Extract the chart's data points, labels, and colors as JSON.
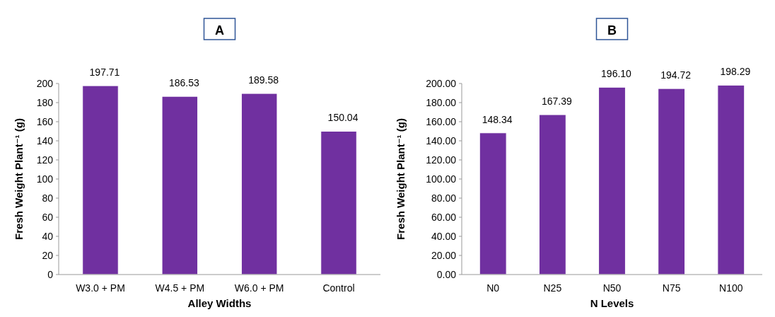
{
  "chart_data": [
    {
      "type": "bar",
      "title": "A",
      "xlabel": "Alley Widths",
      "ylabel": "Fresh Weight Plant⁻¹ (g)",
      "categories": [
        "W3.0  + PM",
        "W4.5  + PM",
        "W6.0  + PM",
        "Control"
      ],
      "values": [
        197.71,
        186.53,
        189.58,
        150.04
      ],
      "color": "#7030a0",
      "data_labels": true,
      "ylim": [
        0,
        200
      ],
      "yticks": [
        0,
        20,
        40,
        60,
        80,
        100,
        120,
        140,
        160,
        180,
        200
      ],
      "grid": false
    },
    {
      "type": "bar",
      "title": "B",
      "xlabel": "N Levels",
      "ylabel": "Fresh Weight Plant⁻¹ (g)",
      "categories": [
        "N0",
        "N25",
        "N50",
        "N75",
        "N100"
      ],
      "values": [
        148.34,
        167.39,
        196.1,
        194.72,
        198.29
      ],
      "value_labels": [
        "148.34",
        "167.39",
        "196.10",
        "194.72",
        "198.29"
      ],
      "color": "#7030a0",
      "ylim": [
        0,
        200
      ],
      "yticks": [
        {
          "value": 0,
          "label": "0.00"
        },
        {
          "value": 20,
          "label": "20.00"
        },
        {
          "value": 40,
          "label": "40.00"
        },
        {
          "value": 60,
          "label": "60.00"
        },
        {
          "value": 80,
          "label": "80.00"
        },
        {
          "value": 100,
          "label": "100.00"
        },
        {
          "value": 120,
          "label": "120.00"
        },
        {
          "value": 140,
          "label": "140.00"
        },
        {
          "value": 160,
          "label": "160.00"
        },
        {
          "value": 180,
          "label": "180.00"
        },
        {
          "value": 200,
          "label": "200.00"
        }
      ],
      "grid": false
    }
  ]
}
